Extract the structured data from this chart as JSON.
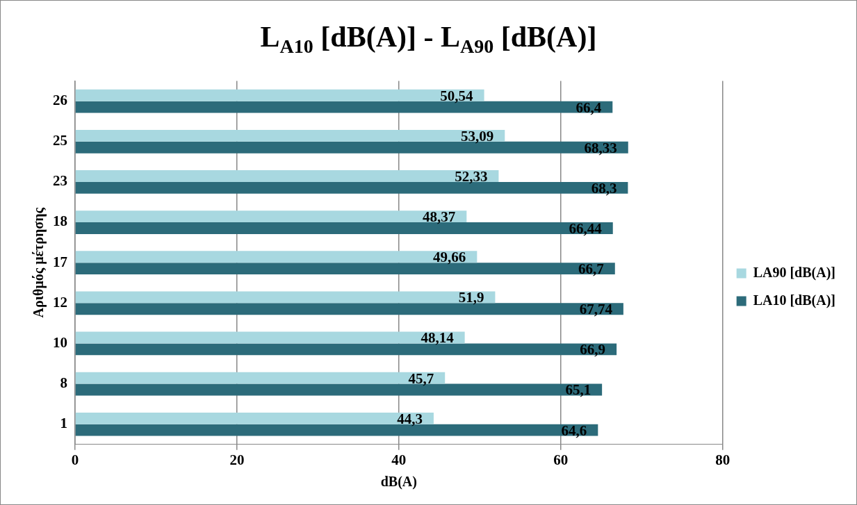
{
  "chart_data": {
    "type": "bar",
    "orientation": "horizontal",
    "title": "L$_{A10}$ [dB(A)] - L$_{A90}$ [dB(A)]",
    "xlabel": "dB(A)",
    "ylabel": "Αριθμός μέτρησης",
    "categories": [
      "26",
      "25",
      "23",
      "18",
      "17",
      "12",
      "10",
      "8",
      "1"
    ],
    "series": [
      {
        "name": "LA90 [dB(A)]",
        "color": "#a8d8e0",
        "values": [
          50.54,
          53.09,
          52.33,
          48.37,
          49.66,
          51.9,
          48.14,
          45.7,
          44.3
        ],
        "value_labels": [
          "50,54",
          "53,09",
          "52,33",
          "48,37",
          "49,66",
          "51,9",
          "48,14",
          "45,7",
          "44,3"
        ]
      },
      {
        "name": "LA10 [dB(A)]",
        "color": "#2c6b7a",
        "values": [
          66.4,
          68.33,
          68.3,
          66.44,
          66.7,
          67.74,
          66.9,
          65.1,
          64.6
        ],
        "value_labels": [
          "66,4",
          "68,33",
          "68,3",
          "66,44",
          "66,7",
          "67,74",
          "66,9",
          "65,1",
          "64,6"
        ]
      }
    ],
    "xlim": [
      0,
      80
    ],
    "xticks": [
      0,
      20,
      40,
      60,
      80
    ],
    "grid": "x",
    "legend": "right"
  }
}
